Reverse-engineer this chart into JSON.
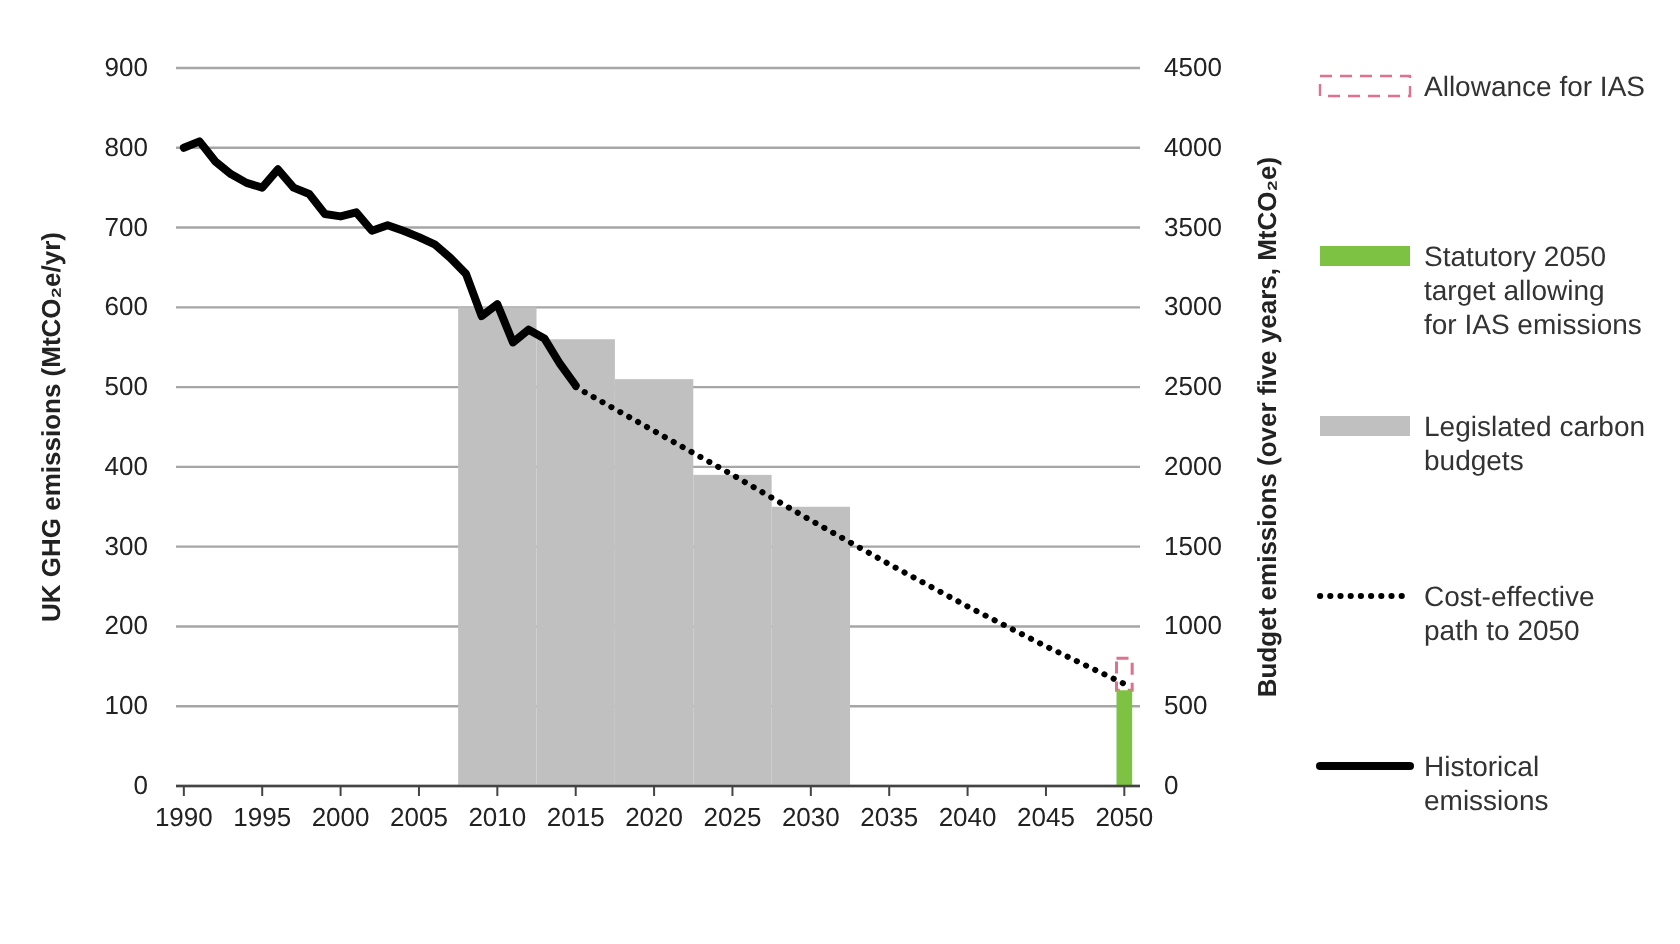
{
  "chart_data": {
    "type": "line",
    "ylabel": "UK GHG emissions (MtCO₂e/yr)",
    "y2label": "Budget emissions (over five years, MtCO₂e)",
    "xlim": [
      1989.5,
      2051
    ],
    "xticks": [
      1990,
      1995,
      2000,
      2005,
      2010,
      2015,
      2020,
      2025,
      2030,
      2035,
      2040,
      2045,
      2050
    ],
    "ylim": [
      0,
      900
    ],
    "yticks": [
      0,
      100,
      200,
      300,
      400,
      500,
      600,
      700,
      800,
      900
    ],
    "y2lim": [
      0,
      4500
    ],
    "y2ticks": [
      0,
      500,
      1000,
      1500,
      2000,
      2500,
      3000,
      3500,
      4000,
      4500
    ],
    "grid": "y",
    "legend": "right",
    "series": [
      {
        "name": "Allowance for IAS",
        "type": "bar",
        "axis": "y2",
        "color": "#e0708c",
        "line_style": "dashed",
        "x": [
          2050
        ],
        "base": [
          600
        ],
        "values": [
          200
        ]
      },
      {
        "name": "Statutory 2050 target allowing for IAS emissions",
        "type": "bar",
        "axis": "y2",
        "color": "#7dc242",
        "x": [
          2050
        ],
        "values": [
          600
        ]
      },
      {
        "name": "Legislated carbon budgets",
        "type": "bar",
        "axis": "y2",
        "color": "#c0c0c0",
        "x": [
          2010,
          2015,
          2020,
          2025,
          2030
        ],
        "values": [
          3000,
          2800,
          2550,
          1950,
          1750
        ]
      },
      {
        "name": "Cost-effective path to 2050",
        "color": "#000000",
        "line_style": "dotted",
        "x": [
          2015,
          2020,
          2025,
          2030,
          2035,
          2040,
          2045,
          2050
        ],
        "values": [
          500,
          445,
          390,
          333,
          278,
          225,
          175,
          128
        ]
      },
      {
        "name": "Historical emissions",
        "color": "#000000",
        "line_style": "solid",
        "x": [
          1990,
          1991,
          1992,
          1993,
          1994,
          1995,
          1996,
          1997,
          1998,
          1999,
          2000,
          2001,
          2002,
          2003,
          2004,
          2005,
          2006,
          2007,
          2008,
          2009,
          2010,
          2011,
          2012,
          2013,
          2014,
          2015
        ],
        "values": [
          800,
          808,
          783,
          767,
          756,
          750,
          773,
          750,
          742,
          717,
          714,
          719,
          696,
          703,
          696,
          688,
          679,
          662,
          642,
          589,
          604,
          556,
          572,
          561,
          529,
          502
        ]
      }
    ]
  }
}
